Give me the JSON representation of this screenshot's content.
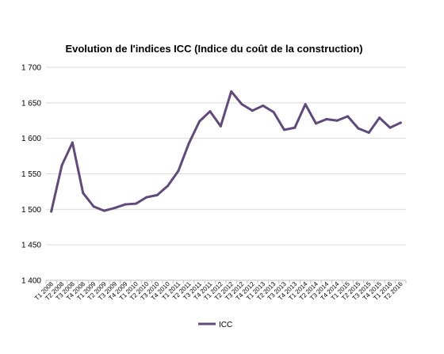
{
  "chart_data": {
    "type": "line",
    "title": "Evolution de l'indices ICC (Indice du coût de la construction)",
    "xlabel": "",
    "ylabel": "",
    "ylim": [
      1400,
      1700
    ],
    "yticks": [
      1400,
      1450,
      1500,
      1550,
      1600,
      1650,
      1700
    ],
    "ytick_labels": [
      "1 400",
      "1 450",
      "1 500",
      "1 550",
      "1 600",
      "1 650",
      "1 700"
    ],
    "grid": "horizontal",
    "legend_position": "bottom",
    "categories": [
      "T1 2008",
      "T2 2008",
      "T3 2008",
      "T4 2008",
      "T1 2009",
      "T2 2009",
      "T3 2009",
      "T4 2009",
      "T1 2010",
      "T2 2010",
      "T3 2010",
      "T4 2010",
      "T1 2011",
      "T2 2011",
      "T3 2011",
      "T4 2011",
      "T1 2012",
      "T2 2012",
      "T3 2012",
      "T4 2012",
      "T1 2013",
      "T2 2013",
      "T3 2013",
      "T4 2013",
      "T1 2014",
      "T2 2014",
      "T3 2014",
      "T4 2014",
      "T1 2015",
      "T2 2015",
      "T3 2015",
      "T4 2015",
      "T1 2016",
      "T2 2016"
    ],
    "series": [
      {
        "name": "ICC",
        "color": "#604a7b",
        "values": [
          1497,
          1562,
          1594,
          1523,
          1504,
          1498,
          1502,
          1507,
          1508,
          1517,
          1520,
          1533,
          1554,
          1593,
          1624,
          1638,
          1617,
          1666,
          1648,
          1639,
          1646,
          1637,
          1612,
          1615,
          1648,
          1621,
          1627,
          1625,
          1631,
          1614,
          1608,
          1629,
          1615,
          1622
        ]
      }
    ]
  }
}
